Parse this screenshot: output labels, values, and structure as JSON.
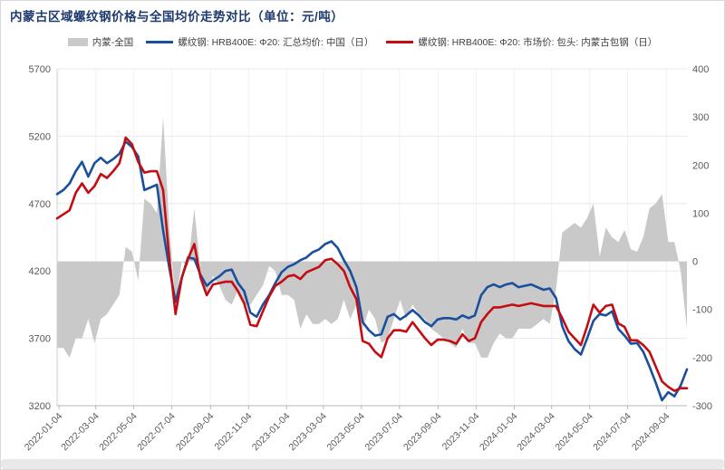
{
  "title": "内蒙古区域螺纹钢价格与全国均价走势对比（单位：元/吨）",
  "colors": {
    "title": "#1e3a6e",
    "diff_area": "#c9c9c9",
    "national_line": "#1a4f9d",
    "baotou_line": "#c40d12",
    "axis_text": "#595959",
    "gridline": "#e8e8e8",
    "background": "#ffffff"
  },
  "legend": {
    "items": [
      {
        "label": "内蒙-全国",
        "type": "area",
        "color": "#c9c9c9"
      },
      {
        "label": "螺纹钢: HRB400E: Φ20: 汇总均价: 中国（日）",
        "type": "line",
        "color": "#1a4f9d"
      },
      {
        "label": "螺纹钢: HRB400E: Φ20: 市场价: 包头: 内蒙古包钢（日）",
        "type": "line",
        "color": "#c40d12"
      }
    ]
  },
  "chart_data": {
    "type": "line",
    "title": "内蒙古区域螺纹钢价格与全国均价走势对比（单位：元/吨）",
    "x_unit": "days since 2022-01-01, sampled every 10 days",
    "x_start_day": 0,
    "x_step_days": 10,
    "x_total_days": 1010,
    "left_axis": {
      "min": 3200,
      "max": 5700,
      "ticks": [
        5700,
        5200,
        4700,
        4200,
        3700,
        3200
      ]
    },
    "right_axis": {
      "min": -300,
      "max": 400,
      "ticks": [
        400,
        300,
        200,
        100,
        0,
        -100,
        -200,
        -300
      ]
    },
    "x_ticks": [
      {
        "day": 3,
        "label": "2022-01-04"
      },
      {
        "day": 62,
        "label": "2022-03-04"
      },
      {
        "day": 123,
        "label": "2022-05-04"
      },
      {
        "day": 184,
        "label": "2022-07-04"
      },
      {
        "day": 246,
        "label": "2022-09-04"
      },
      {
        "day": 307,
        "label": "2022-11-04"
      },
      {
        "day": 368,
        "label": "2023-01-04"
      },
      {
        "day": 427,
        "label": "2023-03-04"
      },
      {
        "day": 488,
        "label": "2023-05-04"
      },
      {
        "day": 549,
        "label": "2023-07-04"
      },
      {
        "day": 611,
        "label": "2023-09-04"
      },
      {
        "day": 672,
        "label": "2023-11-04"
      },
      {
        "day": 733,
        "label": "2024-01-04"
      },
      {
        "day": 793,
        "label": "2024-03-04"
      },
      {
        "day": 854,
        "label": "2024-05-04"
      },
      {
        "day": 915,
        "label": "2024-07-04"
      },
      {
        "day": 977,
        "label": "2024-09-04"
      }
    ],
    "series": [
      {
        "name": "螺纹钢: HRB400E: Φ20: 汇总均价: 中国（日）",
        "axis": "left",
        "color": "#1a4f9d",
        "values": [
          4770,
          4800,
          4850,
          4940,
          5010,
          4900,
          5000,
          5040,
          5000,
          5030,
          5070,
          5160,
          5120,
          5050,
          4800,
          4820,
          4840,
          4500,
          4220,
          3970,
          4150,
          4300,
          4290,
          4170,
          4090,
          4130,
          4160,
          4200,
          4210,
          4110,
          4050,
          3890,
          3860,
          3950,
          4020,
          4110,
          4190,
          4230,
          4250,
          4280,
          4300,
          4340,
          4360,
          4400,
          4420,
          4370,
          4280,
          4200,
          4080,
          3820,
          3760,
          3720,
          3730,
          3860,
          3880,
          3840,
          3870,
          3910,
          3870,
          3820,
          3790,
          3840,
          3850,
          3850,
          3840,
          3870,
          3850,
          3870,
          4020,
          4080,
          4100,
          4080,
          4100,
          4110,
          4080,
          4090,
          4100,
          4080,
          4060,
          4070,
          4000,
          3790,
          3680,
          3620,
          3580,
          3700,
          3830,
          3880,
          3870,
          3900,
          3770,
          3720,
          3660,
          3665,
          3600,
          3490,
          3370,
          3240,
          3300,
          3270,
          3350,
          3470
        ]
      },
      {
        "name": "螺纹钢: HRB400E: Φ20: 市场价: 包头: 内蒙古包钢（日）",
        "axis": "left",
        "color": "#c40d12",
        "values": [
          4590,
          4620,
          4650,
          4780,
          4850,
          4780,
          4830,
          4920,
          4890,
          4940,
          5000,
          5190,
          5140,
          5010,
          4930,
          4940,
          4940,
          4800,
          4290,
          3880,
          4150,
          4290,
          4400,
          4150,
          4020,
          4100,
          4110,
          4120,
          4120,
          4050,
          3960,
          3800,
          3790,
          3900,
          4010,
          4090,
          4120,
          4160,
          4170,
          4140,
          4190,
          4210,
          4230,
          4280,
          4290,
          4250,
          4200,
          4080,
          3990,
          3680,
          3660,
          3600,
          3560,
          3700,
          3760,
          3760,
          3750,
          3820,
          3760,
          3700,
          3650,
          3690,
          3690,
          3680,
          3660,
          3730,
          3680,
          3700,
          3820,
          3880,
          3930,
          3930,
          3940,
          3950,
          3940,
          3950,
          3960,
          3950,
          3940,
          3940,
          3940,
          3850,
          3750,
          3700,
          3650,
          3790,
          3950,
          3890,
          3940,
          3950,
          3810,
          3785,
          3685,
          3685,
          3650,
          3600,
          3490,
          3380,
          3340,
          3310,
          3330,
          3330
        ]
      },
      {
        "name": "内蒙-全国",
        "axis": "right",
        "type": "area",
        "color": "#c9c9c9",
        "derived": "baotou minus national (right axis)"
      }
    ]
  }
}
